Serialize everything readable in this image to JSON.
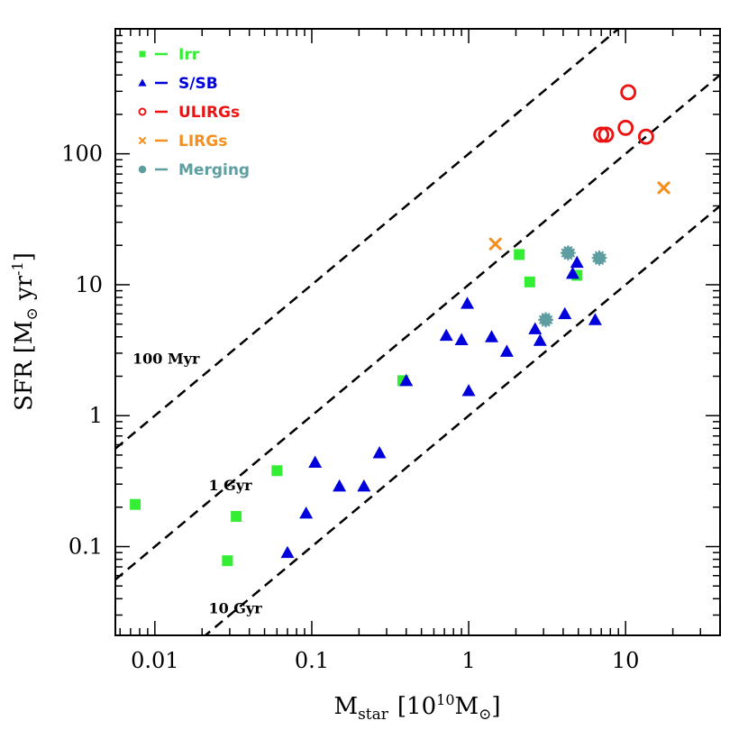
{
  "chart_data": {
    "type": "scatter",
    "xscale": "log",
    "yscale": "log",
    "xlim": [
      0.0056,
      40
    ],
    "ylim": [
      0.021,
      900
    ],
    "xticks": [
      {
        "value": 0.01,
        "label": "0.01"
      },
      {
        "value": 0.1,
        "label": "0.1"
      },
      {
        "value": 1,
        "label": "1"
      },
      {
        "value": 10,
        "label": "10"
      }
    ],
    "yticks": [
      {
        "value": 0.1,
        "label": "0.1"
      },
      {
        "value": 1,
        "label": "1"
      },
      {
        "value": 10,
        "label": "10"
      },
      {
        "value": 100,
        "label": "100"
      }
    ],
    "xlabel": {
      "main": "M",
      "sub": "star",
      "bracket_open": "[10",
      "sup": "10",
      "unit": "M",
      "unit_sub": "⊙",
      "bracket_close": "]"
    },
    "ylabel": {
      "main": "SFR [M",
      "sub": "⊙",
      "mid": " yr",
      "sup": "-1",
      "close": "]"
    },
    "legend": {
      "position": "top-left",
      "entries": [
        {
          "name": "Irr",
          "marker": "square",
          "color": "#33ee33"
        },
        {
          "name": "S/SB",
          "marker": "triangle",
          "color": "#0000dd"
        },
        {
          "name": "ULIRGs",
          "marker": "open-circle",
          "color": "#ee1111"
        },
        {
          "name": "LIRGs",
          "marker": "cross",
          "color": "#f39020"
        },
        {
          "name": "Merging",
          "marker": "star",
          "color": "#5f9ea0"
        }
      ]
    },
    "reference_lines": [
      {
        "label": "100 Myr",
        "timescale_gyr": 0.1,
        "label_x": 0.0072,
        "label_y": 2.5
      },
      {
        "label": "1 Gyr",
        "timescale_gyr": 1,
        "label_x": 0.022,
        "label_y": 0.27
      },
      {
        "label": "10 Gyr",
        "timescale_gyr": 10,
        "label_x": 0.022,
        "label_y": 0.031
      }
    ],
    "series": [
      {
        "name": "Irr",
        "marker": "square",
        "color": "#33ee33",
        "points": [
          [
            0.0075,
            0.21
          ],
          [
            0.029,
            0.078
          ],
          [
            0.033,
            0.17
          ],
          [
            0.06,
            0.38
          ],
          [
            0.38,
            1.85
          ],
          [
            2.1,
            17
          ],
          [
            2.45,
            10.5
          ],
          [
            4.9,
            11.8
          ]
        ]
      },
      {
        "name": "S/SB",
        "marker": "triangle",
        "color": "#0000dd",
        "points": [
          [
            0.07,
            0.09
          ],
          [
            0.092,
            0.18
          ],
          [
            0.105,
            0.44
          ],
          [
            0.15,
            0.29
          ],
          [
            0.215,
            0.29
          ],
          [
            0.27,
            0.52
          ],
          [
            0.4,
            1.85
          ],
          [
            0.72,
            4.1
          ],
          [
            0.9,
            3.8
          ],
          [
            0.98,
            7.2
          ],
          [
            1.0,
            1.55
          ],
          [
            1.4,
            4.0
          ],
          [
            1.75,
            3.1
          ],
          [
            2.65,
            4.6
          ],
          [
            2.85,
            3.75
          ],
          [
            4.1,
            6.0
          ],
          [
            4.6,
            12.2
          ],
          [
            4.9,
            14.8
          ],
          [
            6.4,
            5.4
          ]
        ]
      },
      {
        "name": "ULIRGs",
        "marker": "open-circle",
        "color": "#ee1111",
        "points": [
          [
            10.4,
            295
          ],
          [
            10.0,
            158
          ],
          [
            7.0,
            140
          ],
          [
            7.5,
            140
          ],
          [
            13.5,
            135
          ]
        ]
      },
      {
        "name": "LIRGs",
        "marker": "cross",
        "color": "#f39020",
        "points": [
          [
            1.48,
            20.5
          ],
          [
            17.5,
            55
          ]
        ]
      },
      {
        "name": "Merging",
        "marker": "star",
        "color": "#5f9ea0",
        "points": [
          [
            3.1,
            5.4
          ],
          [
            4.3,
            17.5
          ],
          [
            6.8,
            16.0
          ]
        ]
      }
    ]
  }
}
